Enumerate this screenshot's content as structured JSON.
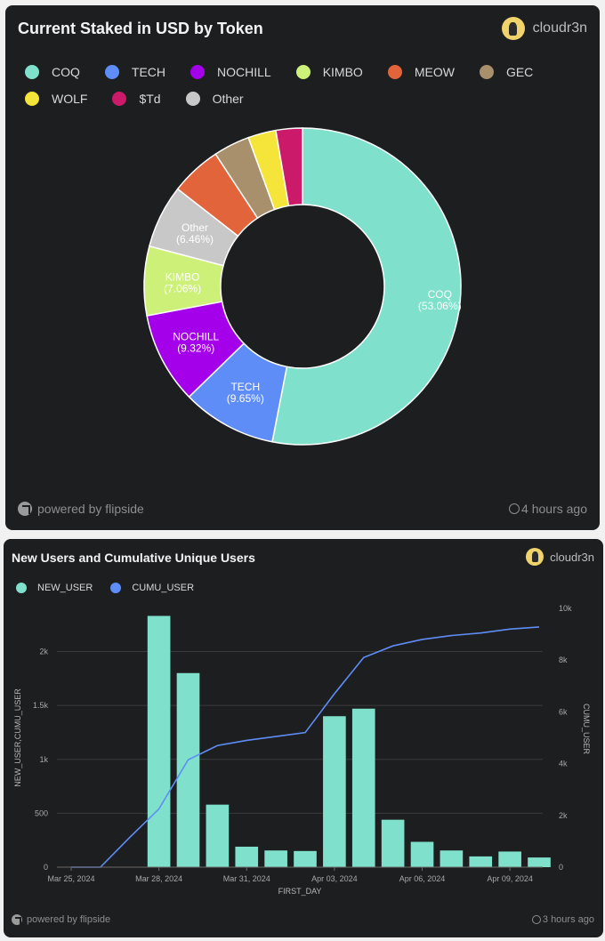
{
  "card1": {
    "title": "Current Staked in USD by Token",
    "owner": "cloudr3n",
    "powered": "powered by flipside",
    "updated": "4 hours ago"
  },
  "card2": {
    "title": "New Users and Cumulative Unique Users",
    "owner": "cloudr3n",
    "powered": "powered by flipside",
    "updated": "3 hours ago"
  },
  "chart_data": [
    {
      "type": "pie",
      "title": "Current Staked in USD by Token",
      "donut": true,
      "legend_position": "top-left",
      "slices": [
        {
          "name": "COQ",
          "value": 53.06,
          "color": "#7fe0cb",
          "label": "COQ",
          "pct_label": "(53.06%)"
        },
        {
          "name": "TECH",
          "value": 9.65,
          "color": "#5f8df7",
          "label": "TECH",
          "pct_label": "(9.65%)"
        },
        {
          "name": "NOCHILL",
          "value": 9.32,
          "color": "#a400ea",
          "label": "NOCHILL",
          "pct_label": "(9.32%)"
        },
        {
          "name": "KIMBO",
          "value": 7.06,
          "color": "#cdf178",
          "label": "KIMBO",
          "pct_label": "(7.06%)"
        },
        {
          "name": "Other",
          "value": 6.46,
          "color": "#c8c8c8",
          "label": "Other",
          "pct_label": "(6.46%)"
        },
        {
          "name": "MEOW",
          "value": 5.2,
          "color": "#e2643a",
          "label": "",
          "pct_label": ""
        },
        {
          "name": "GEC",
          "value": 3.7,
          "color": "#a8906c",
          "label": "",
          "pct_label": ""
        },
        {
          "name": "WOLF",
          "value": 2.85,
          "color": "#f5e53a",
          "label": "",
          "pct_label": ""
        },
        {
          "name": "$Td",
          "value": 2.7,
          "color": "#cb1a6a",
          "label": "",
          "pct_label": ""
        }
      ],
      "legend": [
        "COQ",
        "TECH",
        "NOCHILL",
        "KIMBO",
        "MEOW",
        "GEC",
        "WOLF",
        "$Td",
        "Other"
      ]
    },
    {
      "type": "bar",
      "title": "New Users and Cumulative Unique Users",
      "xlabel": "FIRST_DAY",
      "ylabel": "NEW_USER,CUMU_USER",
      "y2label": "CUMU_USER",
      "ylim": [
        0,
        2400
      ],
      "y2lim": [
        0,
        10000
      ],
      "yticks": [
        0,
        500,
        1000,
        1500,
        2000
      ],
      "yticklabels": [
        "0",
        "500",
        "1k",
        "1.5k",
        "2k"
      ],
      "y2ticks": [
        0,
        2000,
        4000,
        6000,
        8000,
        10000
      ],
      "y2ticklabels": [
        "0",
        "2k",
        "4k",
        "6k",
        "8k",
        "10k"
      ],
      "x_start": "Mar 25, 2024",
      "xticks": [
        "Mar 25, 2024",
        "Mar 28, 2024",
        "Mar 31, 2024",
        "Apr 03, 2024",
        "Apr 06, 2024",
        "Apr 09, 2024"
      ],
      "x": [
        "2024-03-25",
        "2024-03-26",
        "2024-03-27",
        "2024-03-28",
        "2024-03-29",
        "2024-03-30",
        "2024-03-31",
        "2024-04-01",
        "2024-04-02",
        "2024-04-03",
        "2024-04-04",
        "2024-04-05",
        "2024-04-06",
        "2024-04-07",
        "2024-04-08",
        "2024-04-09",
        "2024-04-10"
      ],
      "series": [
        {
          "name": "NEW_USER",
          "type": "bar",
          "color": "#7fe0cb",
          "values": [
            0,
            0,
            0,
            2330,
            1800,
            580,
            190,
            155,
            150,
            1400,
            1470,
            440,
            235,
            155,
            100,
            145,
            90
          ]
        },
        {
          "name": "CUMU_USER",
          "type": "line",
          "axis": "right",
          "color": "#5f8df7",
          "values": [
            0,
            0,
            1150,
            2250,
            4150,
            4700,
            4900,
            5050,
            5200,
            6700,
            8100,
            8550,
            8800,
            8950,
            9050,
            9200,
            9280
          ]
        }
      ]
    }
  ]
}
